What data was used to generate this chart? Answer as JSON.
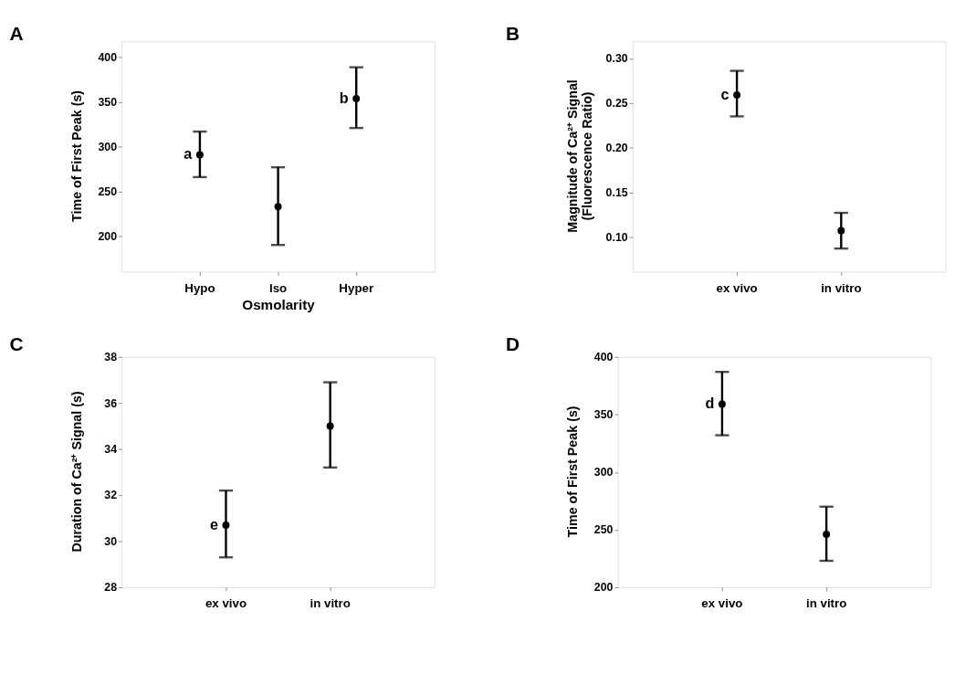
{
  "chart_data": [
    {
      "type": "scatter",
      "title": "A",
      "xlabel": "Osmolarity",
      "ylabel": "Time of First Peak (s)",
      "categories": [
        "Hypo",
        "Iso",
        "Hyper"
      ],
      "marker": "circle",
      "grid": false,
      "series": [
        {
          "color": "#000000",
          "values": [
            291,
            233,
            354
          ],
          "errors": [
            [
              266,
              317
            ],
            [
              190,
              277
            ],
            [
              321,
              389
            ]
          ]
        }
      ],
      "ylim": [
        160,
        418
      ],
      "yticks": [
        200,
        250,
        300,
        350,
        400
      ],
      "annotations": [
        {
          "text": "a",
          "x": "Hypo",
          "y": 291
        },
        {
          "text": "b",
          "x": "Hyper",
          "y": 354
        }
      ]
    },
    {
      "type": "scatter",
      "title": "B",
      "ylabel": "Magnitude of Ca²⁺ Signal\n(Fluorescence Ratio)",
      "categories": [
        "ex vivo",
        "in vitro"
      ],
      "marker": "circle",
      "grid": false,
      "series": [
        {
          "color": "#000000",
          "values": [
            0.259,
            0.107
          ],
          "errors": [
            [
              0.235,
              0.286
            ],
            [
              0.087,
              0.127
            ]
          ]
        }
      ],
      "ylim": [
        0.061,
        0.319
      ],
      "yticks": [
        {
          "value": 0.1,
          "label": "0.10"
        },
        {
          "value": 0.15,
          "label": "0.15"
        },
        {
          "value": 0.2,
          "label": "0.20"
        },
        {
          "value": 0.25,
          "label": "0.25"
        },
        {
          "value": 0.3,
          "label": "0.30"
        }
      ],
      "annotations": [
        {
          "text": "c",
          "x": "ex vivo",
          "y": 0.259
        }
      ]
    },
    {
      "type": "scatter",
      "title": "C",
      "ylabel": "Duration of Ca²⁺ Signal (s)",
      "categories": [
        "ex vivo",
        "in vitro"
      ],
      "marker": "circle",
      "grid": false,
      "series": [
        {
          "color": "#000000",
          "values": [
            30.7,
            35.0
          ],
          "errors": [
            [
              29.3,
              32.2
            ],
            [
              33.2,
              36.9
            ]
          ]
        }
      ],
      "ylim": [
        28,
        38
      ],
      "yticks": [
        28,
        30,
        32,
        34,
        36,
        38
      ],
      "annotations": [
        {
          "text": "e",
          "x": "ex vivo",
          "y": 30.7
        }
      ]
    },
    {
      "type": "scatter",
      "title": "D",
      "ylabel": "Time of First Peak (s)",
      "categories": [
        "ex vivo",
        "in vitro"
      ],
      "marker": "circle",
      "grid": false,
      "series": [
        {
          "color": "#000000",
          "values": [
            359,
            246
          ],
          "errors": [
            [
              332,
              387
            ],
            [
              223,
              270
            ]
          ]
        }
      ],
      "ylim": [
        200,
        400
      ],
      "yticks": [
        200,
        250,
        300,
        350,
        400
      ],
      "annotations": [
        {
          "text": "d",
          "x": "ex vivo",
          "y": 359
        }
      ]
    }
  ]
}
